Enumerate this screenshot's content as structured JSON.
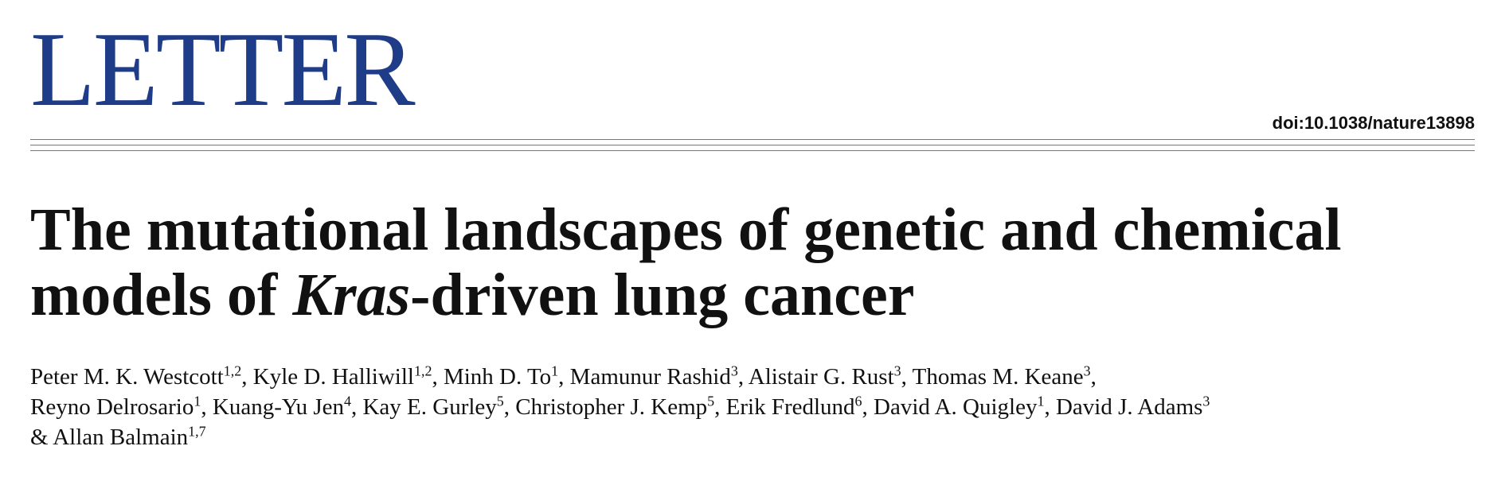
{
  "header": {
    "label": "LETTER",
    "doi": "doi:10.1038/nature13898"
  },
  "title": {
    "lines": [
      [
        {
          "text": "The mutational landscapes of genetic and chemical"
        }
      ],
      [
        {
          "text": "models of "
        },
        {
          "text": "Kras",
          "italic": true
        },
        {
          "text": "-driven lung cancer"
        }
      ]
    ]
  },
  "authors": {
    "lines": [
      [
        {
          "name": "Peter M. K. Westcott",
          "sup": "1,2",
          "punct": ","
        },
        {
          "name": "Kyle D. Halliwill",
          "sup": "1,2",
          "punct": ","
        },
        {
          "name": "Minh D. To",
          "sup": "1",
          "punct": ","
        },
        {
          "name": "Mamunur Rashid",
          "sup": "3",
          "punct": ","
        },
        {
          "name": "Alistair G. Rust",
          "sup": "3",
          "punct": ","
        },
        {
          "name": "Thomas M. Keane",
          "sup": "3",
          "punct": ","
        }
      ],
      [
        {
          "name": "Reyno Delrosario",
          "sup": "1",
          "punct": ","
        },
        {
          "name": "Kuang-Yu Jen",
          "sup": "4",
          "punct": ","
        },
        {
          "name": "Kay E. Gurley",
          "sup": "5",
          "punct": ","
        },
        {
          "name": "Christopher J. Kemp",
          "sup": "5",
          "punct": ","
        },
        {
          "name": "Erik Fredlund",
          "sup": "6",
          "punct": ","
        },
        {
          "name": "David A. Quigley",
          "sup": "1",
          "punct": ","
        },
        {
          "name": "David J. Adams",
          "sup": "3"
        }
      ],
      [
        {
          "prefix": "&",
          "name": "Allan Balmain",
          "sup": "1,7"
        }
      ]
    ]
  }
}
